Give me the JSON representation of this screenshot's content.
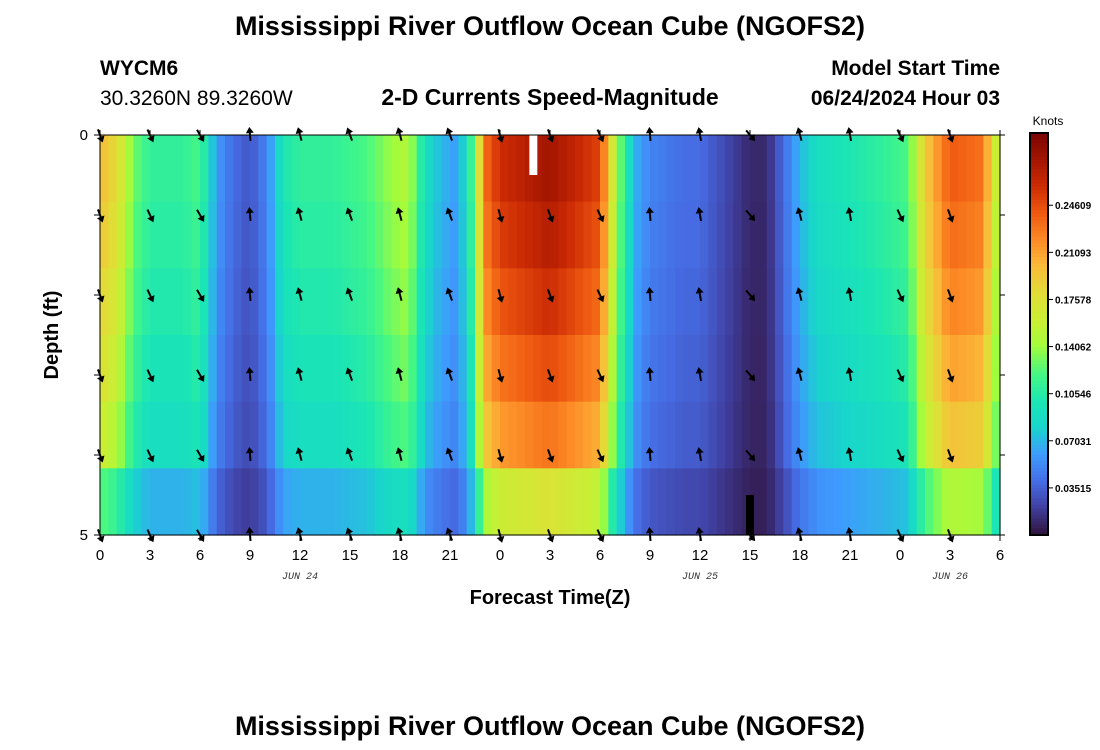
{
  "header": {
    "title": "Mississippi River Outflow Ocean Cube (NGOFS2)",
    "station_id": "WYCM6",
    "station_coords": "30.3260N  89.3260W",
    "subtitle": "2-D Currents Speed-Magnitude",
    "model_start_label": "Model Start Time",
    "model_start_value": "06/24/2024 Hour 03"
  },
  "footer": {
    "title": "Mississippi River Outflow Ocean Cube (NGOFS2)"
  },
  "colors": {
    "arrow": "#000000",
    "marker_white": "#ffffff",
    "marker_black": "#000000"
  },
  "chart_data": {
    "type": "heatmap",
    "xlabel": "Forecast Time(Z)",
    "ylabel": "Depth (ft)",
    "colorbar_unit": "Knots",
    "colormap": "turbo",
    "value_range": [
      0.0,
      0.3
    ],
    "colorbar_ticks": [
      "0.24609",
      "0.21093",
      "0.17578",
      "0.14062",
      "0.10546",
      "0.07031",
      "0.03515"
    ],
    "colorbar_values": [
      0.24609,
      0.21093,
      0.17578,
      0.14062,
      0.10546,
      0.07031,
      0.03515
    ],
    "x_range_hours": [
      0,
      54
    ],
    "x_tick_hours": [
      0,
      3,
      6,
      9,
      12,
      15,
      18,
      21,
      24,
      27,
      30,
      33,
      36,
      39,
      42,
      45,
      48,
      51,
      54
    ],
    "x_tick_labels": [
      "0",
      "3",
      "6",
      "9",
      "12",
      "15",
      "18",
      "21",
      "0",
      "3",
      "6",
      "9",
      "12",
      "15",
      "18",
      "21",
      "0",
      "3",
      "6"
    ],
    "date_labels": [
      {
        "hour": 12,
        "text": "JUN 24"
      },
      {
        "hour": 36,
        "text": "JUN 25"
      },
      {
        "hour": 51,
        "text": "JUN 26"
      }
    ],
    "depth_range": [
      0,
      5
    ],
    "y_tick_labels": [
      "0",
      "5"
    ],
    "speed_profile": [
      [
        0.0,
        0.2
      ],
      [
        1.0,
        0.18
      ],
      [
        2.0,
        0.13
      ],
      [
        3.0,
        0.11
      ],
      [
        5.0,
        0.11
      ],
      [
        6.0,
        0.12
      ],
      [
        7.0,
        0.06
      ],
      [
        8.0,
        0.04
      ],
      [
        9.0,
        0.03
      ],
      [
        10.0,
        0.05
      ],
      [
        11.0,
        0.1
      ],
      [
        12.0,
        0.11
      ],
      [
        14.0,
        0.11
      ],
      [
        16.0,
        0.12
      ],
      [
        17.5,
        0.14
      ],
      [
        18.5,
        0.15
      ],
      [
        19.5,
        0.09
      ],
      [
        20.5,
        0.07
      ],
      [
        21.5,
        0.06
      ],
      [
        22.5,
        0.13
      ],
      [
        23.0,
        0.23
      ],
      [
        24.0,
        0.26
      ],
      [
        27.0,
        0.28
      ],
      [
        30.0,
        0.25
      ],
      [
        31.0,
        0.14
      ],
      [
        31.5,
        0.11
      ],
      [
        32.0,
        0.07
      ],
      [
        33.0,
        0.05
      ],
      [
        35.0,
        0.04
      ],
      [
        36.0,
        0.04
      ],
      [
        37.0,
        0.03
      ],
      [
        38.0,
        0.02
      ],
      [
        39.0,
        0.01
      ],
      [
        40.0,
        0.01
      ],
      [
        41.0,
        0.04
      ],
      [
        42.0,
        0.07
      ],
      [
        43.0,
        0.09
      ],
      [
        45.0,
        0.1
      ],
      [
        47.0,
        0.11
      ],
      [
        48.5,
        0.12
      ],
      [
        49.5,
        0.19
      ],
      [
        51.0,
        0.24
      ],
      [
        53.0,
        0.23
      ],
      [
        53.5,
        0.18
      ],
      [
        54.0,
        0.14
      ]
    ],
    "depth_factor": [
      1.0,
      0.97,
      0.93,
      0.88,
      0.82,
      0.62
    ],
    "vector_times": [
      0,
      3,
      6,
      9,
      12,
      15,
      18,
      21,
      24,
      27,
      30,
      33,
      36,
      39,
      42,
      45,
      48,
      51
    ],
    "vector_depths": [
      0,
      1,
      2,
      3,
      4,
      5
    ],
    "vector_directions_deg": [
      160,
      155,
      150,
      355,
      345,
      340,
      345,
      340,
      165,
      160,
      155,
      355,
      350,
      140,
      345,
      350,
      155,
      160
    ],
    "markers": [
      {
        "hour": 26,
        "depth_start": 0,
        "depth_end": 0.5,
        "color": "white"
      },
      {
        "hour": 39,
        "depth_start": 4.5,
        "depth_end": 5,
        "color": "black"
      }
    ]
  }
}
